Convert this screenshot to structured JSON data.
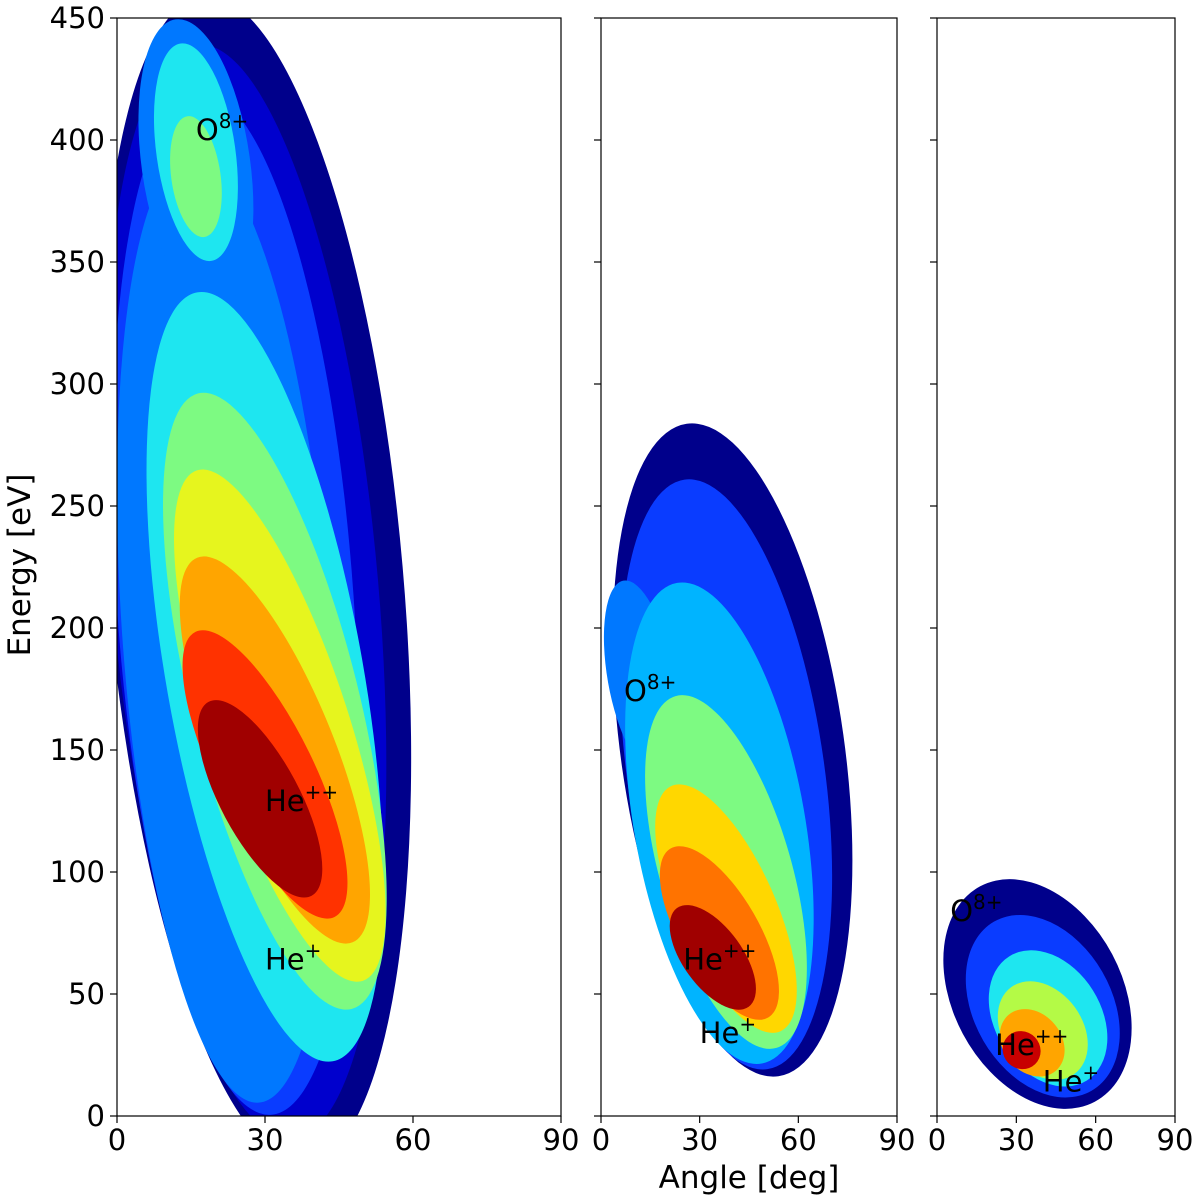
{
  "colors": {
    "levels": [
      "#00008b",
      "#0000cd",
      "#0a3cff",
      "#0078ff",
      "#00b4ff",
      "#1ee6f0",
      "#46f5be",
      "#7dfa82",
      "#b4fa46",
      "#e6f51e",
      "#ffd700",
      "#ffa500",
      "#ff7300",
      "#ff3200",
      "#c80000",
      "#a00000"
    ]
  },
  "chart_data": [
    {
      "type": "heatmap",
      "panel": "left",
      "xlabel": "",
      "ylabel": "Energy [eV]",
      "xlim": [
        0,
        90
      ],
      "ylim": [
        0,
        450
      ],
      "xticks": [
        "0",
        "30",
        "60",
        "90"
      ],
      "yticks": [
        "0",
        "50",
        "100",
        "150",
        "200",
        "250",
        "300",
        "350",
        "400",
        "450"
      ],
      "annotations": [
        {
          "base": "O",
          "sup": "8+",
          "x": 16,
          "y": 400
        },
        {
          "base": "He",
          "sup": "++",
          "x": 30,
          "y": 125
        },
        {
          "base": "He",
          "sup": "+",
          "x": 30,
          "y": 60
        }
      ],
      "blobs": [
        {
          "x": 28,
          "y": 220,
          "rx": 30,
          "ry": 240,
          "rot": -5,
          "level": 0
        },
        {
          "x": 26,
          "y": 215,
          "rx": 27,
          "ry": 225,
          "rot": -5,
          "level": 1
        },
        {
          "x": 24,
          "y": 210,
          "rx": 24,
          "ry": 210,
          "rot": -4,
          "level": 2
        },
        {
          "x": 22,
          "y": 200,
          "rx": 21,
          "ry": 195,
          "rot": -4,
          "level": 3
        },
        {
          "x": 16,
          "y": 390,
          "rx": 11,
          "ry": 60,
          "rot": -8,
          "level": 3
        },
        {
          "x": 16,
          "y": 395,
          "rx": 8,
          "ry": 45,
          "rot": -8,
          "level": 5
        },
        {
          "x": 16,
          "y": 385,
          "rx": 5,
          "ry": 25,
          "rot": -8,
          "level": 7
        },
        {
          "x": 30,
          "y": 180,
          "rx": 20,
          "ry": 160,
          "rot": -10,
          "level": 5
        },
        {
          "x": 32,
          "y": 170,
          "rx": 17,
          "ry": 130,
          "rot": -14,
          "level": 7
        },
        {
          "x": 33,
          "y": 160,
          "rx": 14,
          "ry": 110,
          "rot": -18,
          "level": 9
        },
        {
          "x": 32,
          "y": 150,
          "rx": 12,
          "ry": 85,
          "rot": -22,
          "level": 11
        },
        {
          "x": 30,
          "y": 140,
          "rx": 10,
          "ry": 65,
          "rot": -26,
          "level": 13
        },
        {
          "x": 29,
          "y": 130,
          "rx": 8,
          "ry": 45,
          "rot": -28,
          "level": 15
        }
      ]
    },
    {
      "type": "heatmap",
      "panel": "middle",
      "xlabel": "Angle [deg]",
      "ylabel": "",
      "xlim": [
        0,
        90
      ],
      "ylim": [
        0,
        450
      ],
      "xticks": [
        "0",
        "30",
        "60",
        "90"
      ],
      "yticks": [
        "0",
        "50",
        "100",
        "150",
        "200",
        "250",
        "300",
        "350",
        "400",
        "450"
      ],
      "annotations": [
        {
          "base": "O",
          "sup": "8+",
          "x": 7,
          "y": 170
        },
        {
          "base": "He",
          "sup": "++",
          "x": 25,
          "y": 60
        },
        {
          "base": "He",
          "sup": "+",
          "x": 30,
          "y": 30
        }
      ],
      "blobs": [
        {
          "x": 40,
          "y": 150,
          "rx": 34,
          "ry": 135,
          "rot": -8,
          "level": 0
        },
        {
          "x": 38,
          "y": 140,
          "rx": 30,
          "ry": 122,
          "rot": -8,
          "level": 2
        },
        {
          "x": 12,
          "y": 180,
          "rx": 10,
          "ry": 40,
          "rot": -10,
          "level": 3
        },
        {
          "x": 36,
          "y": 120,
          "rx": 26,
          "ry": 100,
          "rot": -10,
          "level": 4
        },
        {
          "x": 38,
          "y": 100,
          "rx": 20,
          "ry": 75,
          "rot": -16,
          "level": 7
        },
        {
          "x": 38,
          "y": 85,
          "rx": 15,
          "ry": 55,
          "rot": -24,
          "level": 10
        },
        {
          "x": 36,
          "y": 75,
          "rx": 12,
          "ry": 40,
          "rot": -30,
          "level": 12
        },
        {
          "x": 34,
          "y": 65,
          "rx": 9,
          "ry": 25,
          "rot": -36,
          "level": 15
        }
      ]
    },
    {
      "type": "heatmap",
      "panel": "right",
      "xlabel": "",
      "ylabel": "",
      "xlim": [
        0,
        90
      ],
      "ylim": [
        0,
        450
      ],
      "xticks": [
        "0",
        "30",
        "60",
        "90"
      ],
      "yticks": [
        "0",
        "50",
        "100",
        "150",
        "200",
        "250",
        "300",
        "350",
        "400",
        "450"
      ],
      "annotations": [
        {
          "base": "O",
          "sup": "8+",
          "x": 5,
          "y": 80
        },
        {
          "base": "He",
          "sup": "++",
          "x": 22,
          "y": 25
        },
        {
          "base": "He",
          "sup": "+",
          "x": 40,
          "y": 10
        }
      ],
      "blobs": [
        {
          "x": 38,
          "y": 50,
          "rx": 32,
          "ry": 50,
          "rot": -28,
          "level": 0
        },
        {
          "x": 40,
          "y": 45,
          "rx": 26,
          "ry": 40,
          "rot": -30,
          "level": 2
        },
        {
          "x": 42,
          "y": 40,
          "rx": 20,
          "ry": 30,
          "rot": -32,
          "level": 5
        },
        {
          "x": 40,
          "y": 35,
          "rx": 15,
          "ry": 22,
          "rot": -36,
          "level": 8
        },
        {
          "x": 36,
          "y": 30,
          "rx": 11,
          "ry": 15,
          "rot": -40,
          "level": 11
        },
        {
          "x": 32,
          "y": 27,
          "rx": 7,
          "ry": 8,
          "rot": -44,
          "level": 14
        }
      ]
    }
  ]
}
